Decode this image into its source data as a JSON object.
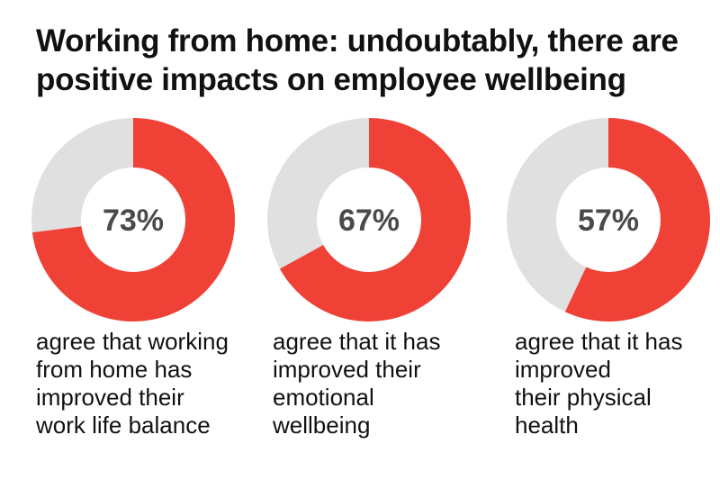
{
  "title": "Working from home: undoubtably, there are\npositive impacts on employee wellbeing",
  "colors": {
    "filled": "#ef4136",
    "remainder": "#e0e0e0"
  },
  "chart_data": [
    {
      "type": "pie",
      "value": 73,
      "label": "73%",
      "caption": "agree that working\nfrom home has\nimproved their\nwork life balance"
    },
    {
      "type": "pie",
      "value": 67,
      "label": "67%",
      "caption": "agree that it has\nimproved their\nemotional\nwellbeing"
    },
    {
      "type": "pie",
      "value": 57,
      "label": "57%",
      "caption": "agree that it has\nimproved\ntheir physical\nhealth"
    }
  ]
}
